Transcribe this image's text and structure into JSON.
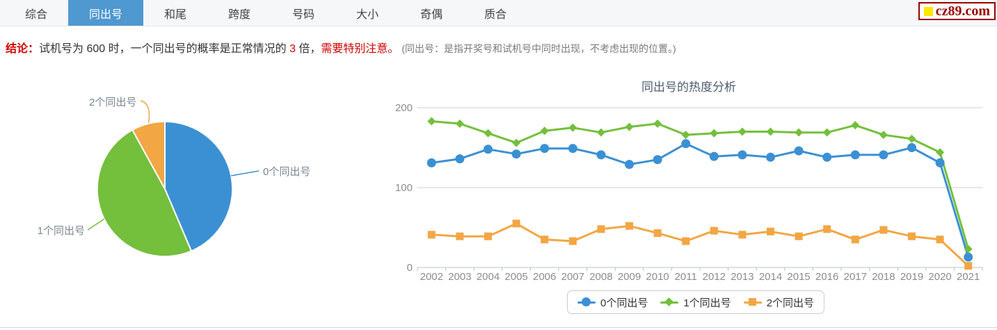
{
  "logo": {
    "text": "cz89.com",
    "square_color": "#ffe800",
    "text_color": "#9b0000"
  },
  "tabs": {
    "active_bg": "#4f98d0",
    "items": [
      {
        "label": "综合",
        "active": false
      },
      {
        "label": "同出号",
        "active": true
      },
      {
        "label": "和尾",
        "active": false
      },
      {
        "label": "跨度",
        "active": false
      },
      {
        "label": "号码",
        "active": false
      },
      {
        "label": "大小",
        "active": false
      },
      {
        "label": "奇偶",
        "active": false
      },
      {
        "label": "质合",
        "active": false
      }
    ]
  },
  "conclusion": {
    "parts": [
      {
        "text": "结论：",
        "style": "label"
      },
      {
        "text": "试机号为 600 时，一个同出号的概率是正常情况的 ",
        "style": "normal"
      },
      {
        "text": "3",
        "style": "red"
      },
      {
        "text": " 倍，",
        "style": "normal"
      },
      {
        "text": "需要特别注意。",
        "style": "red"
      },
      {
        "text": " (同出号：是指开奖号和试机号中同时出现，不考虑出现的位置。)",
        "style": "note"
      }
    ]
  },
  "chart_data": [
    {
      "type": "pie",
      "labels": [
        "0个同出号",
        "1个同出号",
        "2个同出号"
      ],
      "values_percent": [
        43.6,
        48.4,
        8.0
      ],
      "colors": [
        "#3b90d4",
        "#74bf3c",
        "#f2a644"
      ],
      "start_angle": "top",
      "direction": "clockwise",
      "label_color": "#7b8693"
    },
    {
      "type": "line",
      "title": "同出号的热度分析",
      "x": [
        "2002",
        "2003",
        "2004",
        "2005",
        "2006",
        "2007",
        "2008",
        "2009",
        "2010",
        "2011",
        "2012",
        "2013",
        "2014",
        "2015",
        "2016",
        "2017",
        "2018",
        "2019",
        "2020",
        "2021"
      ],
      "series": [
        {
          "name": "0个同出号",
          "color": "#3b90d4",
          "marker": "circle",
          "values": [
            131,
            136,
            148,
            142,
            149,
            149,
            141,
            129,
            135,
            155,
            139,
            141,
            138,
            146,
            138,
            141,
            141,
            150,
            131,
            13
          ]
        },
        {
          "name": "1个同出号",
          "color": "#74bf3c",
          "marker": "diamond",
          "values": [
            183,
            180,
            168,
            156,
            171,
            175,
            169,
            176,
            180,
            166,
            168,
            170,
            170,
            169,
            169,
            178,
            166,
            161,
            144,
            23
          ]
        },
        {
          "name": "2个同出号",
          "color": "#f2a644",
          "marker": "square",
          "values": [
            41,
            39,
            39,
            55,
            35,
            33,
            48,
            52,
            43,
            33,
            46,
            41,
            45,
            39,
            48,
            35,
            47,
            39,
            35,
            2
          ]
        }
      ],
      "ylim": [
        0,
        200
      ],
      "yticks": [
        0,
        100,
        200
      ],
      "grid": true,
      "legend_position": "bottom",
      "title_color": "#4e5d6c",
      "axis_label_color": "#8c8c8c",
      "gridline_color": "#cccccc",
      "axis_line_color": "#b4c0cc"
    }
  ]
}
